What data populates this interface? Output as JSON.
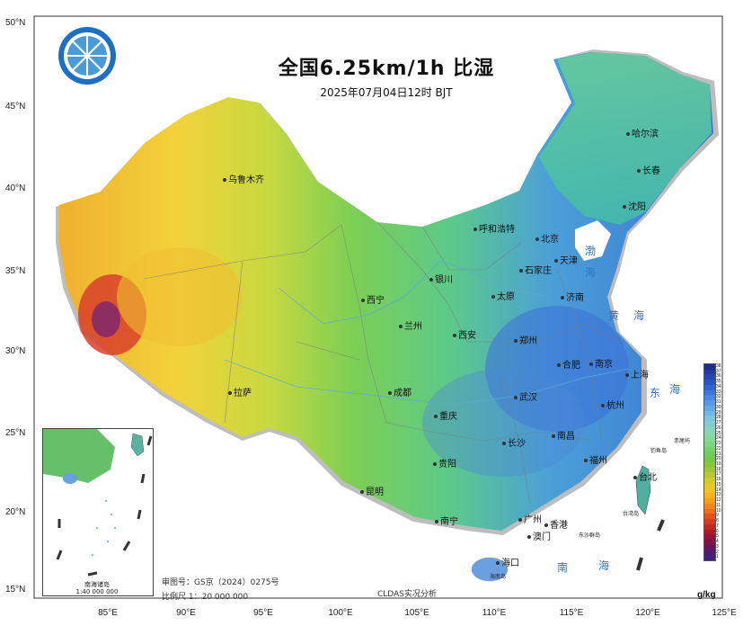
{
  "title": "全国6.25km/1h 比湿",
  "subtitle": "2025年07月04日12时 BJT",
  "lat_labels": [
    "50°N",
    "45°N",
    "40°N",
    "35°N",
    "30°N",
    "25°N",
    "20°N",
    "15°N"
  ],
  "lon_labels": [
    "85°E",
    "90°E",
    "95°E",
    "100°E",
    "105°E",
    "110°E",
    "115°E",
    "120°E",
    "125°E"
  ],
  "cities": [
    "乌鲁木齐",
    "哈尔滨",
    "长春",
    "沈阳",
    "呼和浩特",
    "北京",
    "天津",
    "石家庄",
    "银川",
    "太原",
    "济南",
    "西宁",
    "兰州",
    "西安",
    "郑州",
    "合肥",
    "南京",
    "上海",
    "拉萨",
    "成都",
    "武汉",
    "杭州",
    "重庆",
    "长沙",
    "南昌",
    "福州",
    "贵阳",
    "台北",
    "昆明",
    "南宁",
    "广州",
    "香港",
    "澳门",
    "海口"
  ],
  "seas": [
    "渤",
    "海",
    "黄",
    "海",
    "东",
    "海",
    "南",
    "海"
  ],
  "islands": [
    "赤尾屿",
    "钓鱼岛",
    "台湾岛",
    "东沙群岛",
    "海南岛"
  ],
  "inset": {
    "caption_line1": "南海诸岛",
    "caption_line2": "1:40 000 000"
  },
  "approval_number": "审图号：GS京（2024）0275号",
  "scale_text": "比例尺 1：20 000 000",
  "source": "CLDAS实况分析",
  "legend": {
    "unit": "g/kg",
    "ticks": [
      "38",
      "37",
      "36",
      "35",
      "34",
      "33",
      "32",
      "31",
      "30",
      "29",
      "28",
      "27",
      "26",
      "25",
      "24",
      "23",
      "22",
      "21",
      "20",
      "19",
      "18",
      "17",
      "16",
      "15",
      "14",
      "13",
      "12",
      "11",
      "10",
      "9",
      "8",
      "7",
      "6",
      "5",
      "4",
      "3",
      "2",
      "1"
    ],
    "colors": [
      "#1b2f8a",
      "#1e3a9e",
      "#2347b3",
      "#2a56c4",
      "#3066d2",
      "#3a77dc",
      "#4788e3",
      "#5599e8",
      "#64aaea",
      "#71b8e8",
      "#7cc4e0",
      "#84ccd2",
      "#87d2c0",
      "#88d6ac",
      "#84d898",
      "#7cd782",
      "#72d36c",
      "#6ccd58",
      "#74c944",
      "#88c63a",
      "#a0c635",
      "#b8c830",
      "#d0ca2c",
      "#e4c928",
      "#f2c223",
      "#f7b31f",
      "#f79f1d",
      "#f3871b",
      "#ec6d1a",
      "#e2531b",
      "#d53b1e",
      "#c42823",
      "#b0172d",
      "#991239",
      "#7f1149",
      "#67145b",
      "#521a6e",
      "#3f2080"
    ]
  },
  "colors": {
    "land_green": "#66cc66",
    "dry_yellow": "#f2d23a",
    "humid_blue": "#3f7ad8",
    "sea_label": "#2f74c6"
  }
}
